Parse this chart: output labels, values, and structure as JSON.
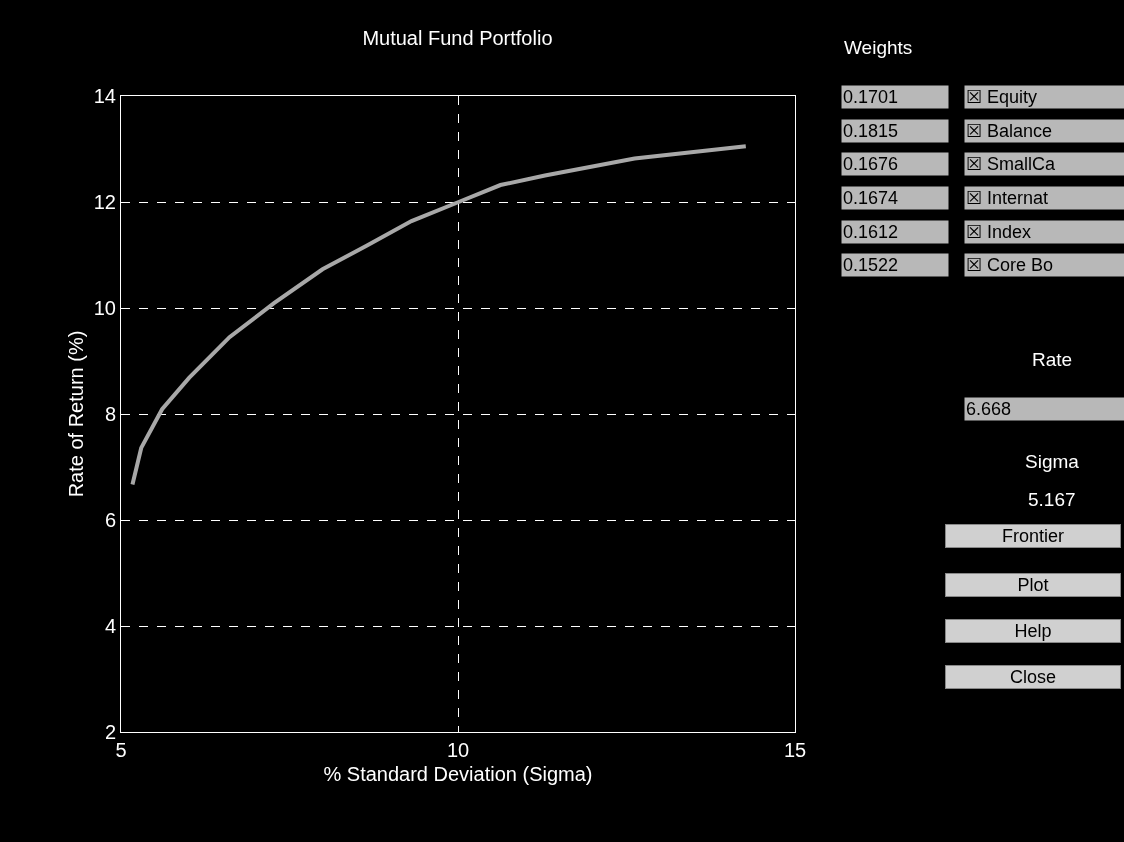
{
  "chart_data": {
    "type": "line",
    "title": "Mutual Fund Portfolio",
    "xlabel": "% Standard Deviation (Sigma)",
    "ylabel": "Rate of Return (%)",
    "x": [
      5.17,
      5.3,
      5.61,
      6.01,
      6.61,
      7.27,
      7.99,
      8.65,
      9.31,
      10.01,
      10.63,
      11.29,
      12.62,
      14.27
    ],
    "series": [
      {
        "color": "#a8a8a8",
        "values": [
          6.67,
          7.36,
          8.09,
          8.68,
          9.45,
          10.09,
          10.73,
          11.18,
          11.64,
          12.0,
          12.32,
          12.5,
          12.82,
          13.05
        ]
      }
    ],
    "xlim": [
      5,
      15
    ],
    "xticks": [
      5,
      10,
      15
    ],
    "ylim": [
      2,
      14
    ],
    "yticks": [
      2,
      4,
      6,
      8,
      10,
      12,
      14
    ],
    "grid": true,
    "line_style": "solid",
    "marker": "none",
    "annotations": [
      "Weights",
      "0.1701",
      "0.1815",
      "0.1676",
      "0.1674",
      "0.1612",
      "0.1522",
      "☒ Equity",
      "☒ Balance",
      "☒ SmallCa",
      "☒ Internat",
      "☒ Index",
      "☒ Core Bo",
      "Rate",
      "6.668",
      "Sigma",
      "5.167",
      "Frontier",
      "Plot",
      "Help",
      "Close"
    ]
  }
}
